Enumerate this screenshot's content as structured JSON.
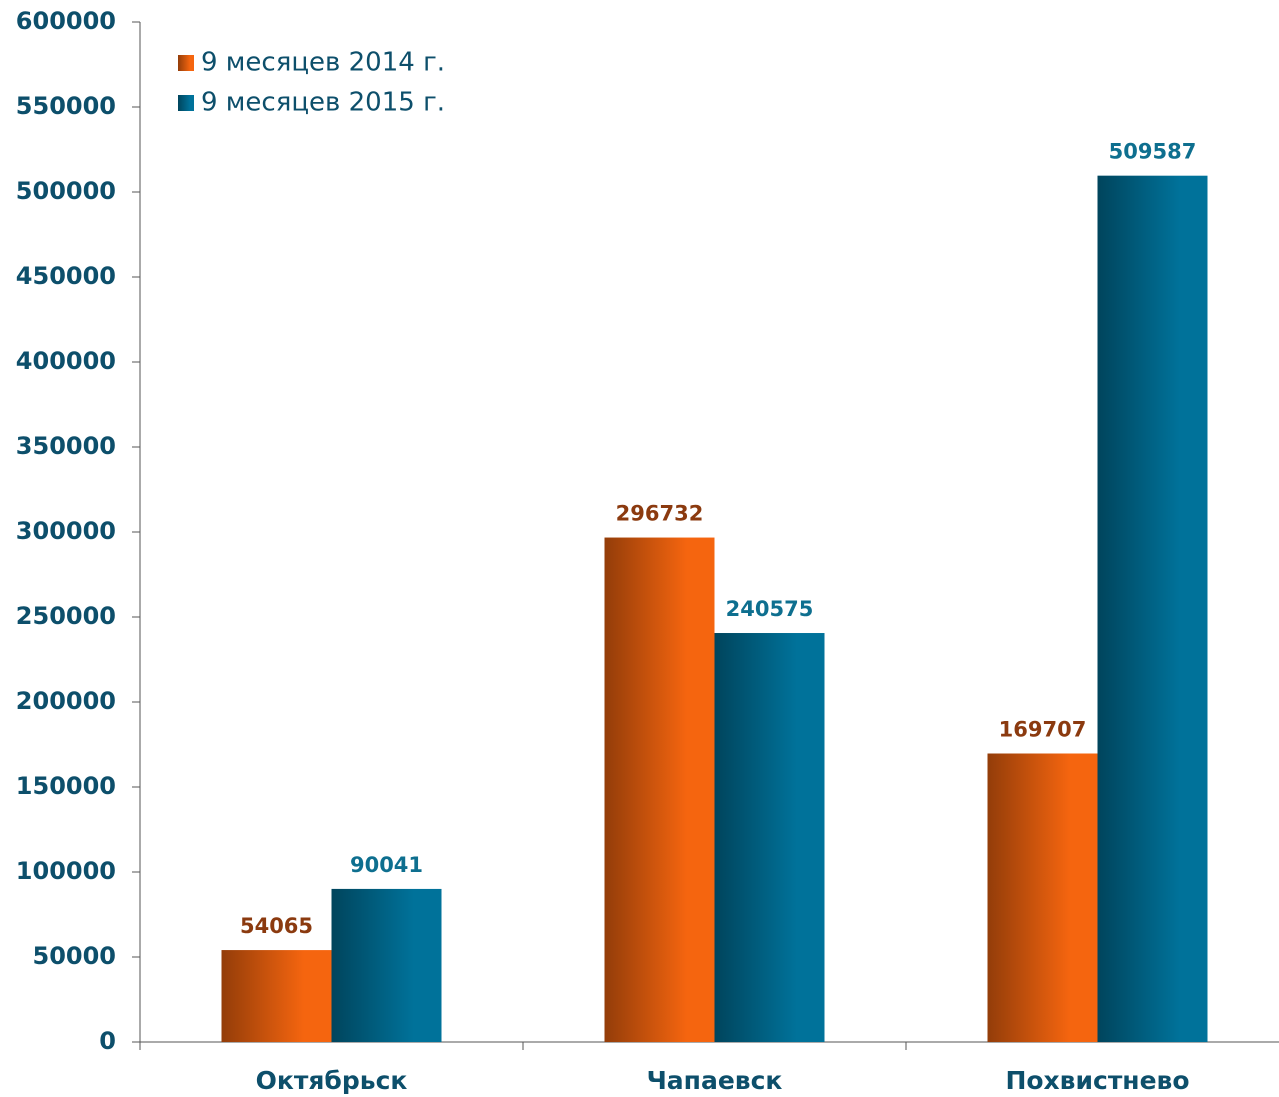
{
  "chart_data": {
    "type": "bar",
    "categories": [
      "Октябрьск",
      "Чапаевск",
      "Похвистнево"
    ],
    "series": [
      {
        "name": "9 месяцев 2014 г.",
        "color": "#f5650f",
        "label_color": "#8b3a0f",
        "values": [
          54065,
          296732,
          169707
        ]
      },
      {
        "name": "9 месяцев 2015 г.",
        "color": "#00729a",
        "label_color": "#0e6f8f",
        "values": [
          90041,
          240575,
          509587
        ]
      }
    ],
    "ylim": [
      0,
      600000
    ],
    "yticks": [
      0,
      50000,
      100000,
      150000,
      200000,
      250000,
      300000,
      350000,
      400000,
      450000,
      500000,
      550000,
      600000
    ],
    "legend": "top-left"
  }
}
